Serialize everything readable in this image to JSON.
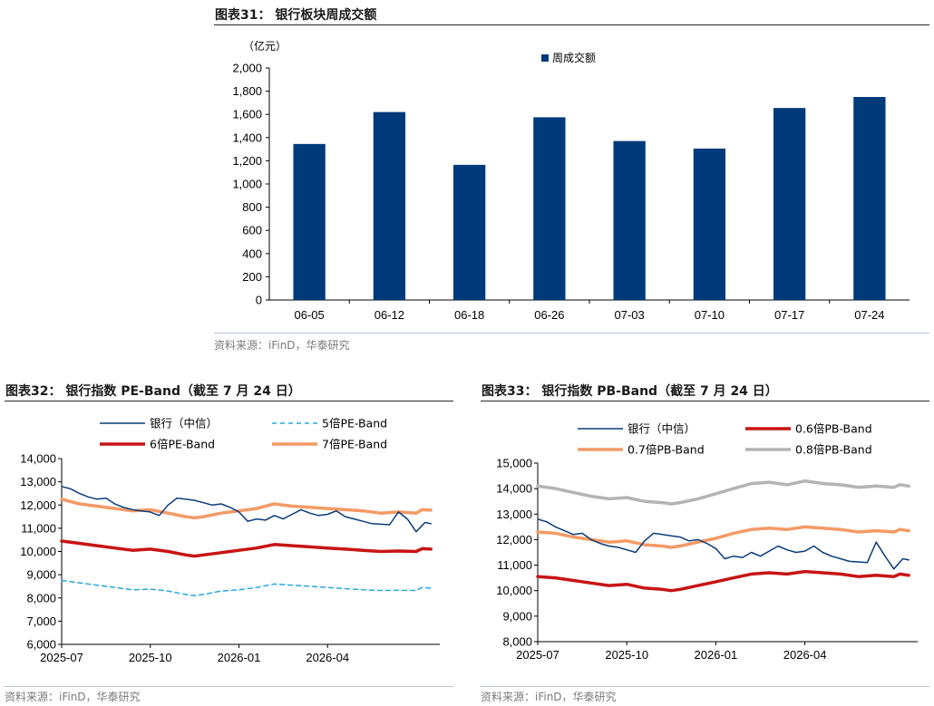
{
  "figures": {
    "fig31": {
      "title": "图表31： 银行板块周成交额",
      "source": "资料来源：iFinD，华泰研究",
      "unit": "（亿元）"
    },
    "fig32": {
      "title": "图表32： 银行指数 PE-Band（截至 7 月 24 日）",
      "source": "资料来源：iFinD，华泰研究"
    },
    "fig33": {
      "title": "图表33： 银行指数 PB-Band（截至 7 月 24 日）",
      "source": "资料来源：iFinD，华泰研究"
    }
  },
  "chart_data": [
    {
      "type": "bar",
      "title": "银行板块周成交额",
      "ylabel": "（亿元）",
      "categories": [
        "06-05",
        "06-12",
        "06-18",
        "06-26",
        "07-03",
        "07-10",
        "07-17",
        "07-24"
      ],
      "series": [
        {
          "name": "周成交额",
          "color": "#003a7a",
          "values": [
            1345,
            1620,
            1165,
            1575,
            1370,
            1305,
            1655,
            1750
          ]
        }
      ],
      "ylim": [
        0,
        2000
      ],
      "yticks": [
        0,
        200,
        400,
        600,
        800,
        1000,
        1200,
        1400,
        1600,
        1800,
        2000
      ],
      "ytick_labels": [
        "0",
        "200",
        "400",
        "600",
        "800",
        "1,000",
        "1,200",
        "1,400",
        "1,600",
        "1,800",
        "2,000"
      ],
      "grid": false,
      "legend": "top-center"
    },
    {
      "type": "line",
      "title": "银行指数 PE-Band（截至 7 月 24 日）",
      "x_ticks": [
        "2025-07",
        "2025-10",
        "2026-01",
        "2026-04"
      ],
      "x_tick_pos": [
        0,
        3,
        6,
        9
      ],
      "x_range": [
        0,
        12.8
      ],
      "ylim": [
        6000,
        14000
      ],
      "yticks": [
        6000,
        7000,
        8000,
        9000,
        10000,
        11000,
        12000,
        13000,
        14000
      ],
      "ytick_labels": [
        "6,000",
        "7,000",
        "8,000",
        "9,000",
        "10,000",
        "11,000",
        "12,000",
        "13,000",
        "14,000"
      ],
      "legend": "top",
      "series": [
        {
          "name": "银行（中信）",
          "color": "#0b3b7a",
          "width": 1.5,
          "dash": "",
          "points": [
            [
              0,
              12800
            ],
            [
              0.3,
              12700
            ],
            [
              0.6,
              12500
            ],
            [
              0.9,
              12350
            ],
            [
              1.2,
              12250
            ],
            [
              1.5,
              12300
            ],
            [
              1.8,
              12050
            ],
            [
              2.1,
              11900
            ],
            [
              2.4,
              11800
            ],
            [
              2.7,
              11750
            ],
            [
              3.0,
              11700
            ],
            [
              3.3,
              11550
            ],
            [
              3.6,
              12000
            ],
            [
              3.9,
              12300
            ],
            [
              4.2,
              12250
            ],
            [
              4.5,
              12200
            ],
            [
              4.8,
              12100
            ],
            [
              5.1,
              12000
            ],
            [
              5.4,
              12050
            ],
            [
              5.7,
              11900
            ],
            [
              6.0,
              11700
            ],
            [
              6.3,
              11300
            ],
            [
              6.6,
              11400
            ],
            [
              6.9,
              11350
            ],
            [
              7.2,
              11550
            ],
            [
              7.5,
              11400
            ],
            [
              7.8,
              11600
            ],
            [
              8.1,
              11800
            ],
            [
              8.4,
              11650
            ],
            [
              8.7,
              11550
            ],
            [
              9.0,
              11600
            ],
            [
              9.3,
              11750
            ],
            [
              9.6,
              11500
            ],
            [
              9.9,
              11400
            ],
            [
              10.2,
              11300
            ],
            [
              10.5,
              11200
            ],
            [
              11.1,
              11150
            ],
            [
              11.4,
              11700
            ],
            [
              11.7,
              11400
            ],
            [
              12.0,
              10850
            ],
            [
              12.3,
              11250
            ],
            [
              12.5,
              11200
            ]
          ]
        },
        {
          "name": "5倍PE-Band",
          "color": "#28a8e0",
          "width": 1.5,
          "dash": "5,4",
          "points": [
            [
              0,
              8750
            ],
            [
              0.6,
              8650
            ],
            [
              1.2,
              8550
            ],
            [
              1.8,
              8450
            ],
            [
              2.4,
              8350
            ],
            [
              3.0,
              8380
            ],
            [
              3.6,
              8300
            ],
            [
              4.2,
              8150
            ],
            [
              4.5,
              8100
            ],
            [
              4.8,
              8150
            ],
            [
              5.4,
              8300
            ],
            [
              6.0,
              8350
            ],
            [
              6.6,
              8450
            ],
            [
              7.2,
              8600
            ],
            [
              7.8,
              8550
            ],
            [
              8.4,
              8500
            ],
            [
              9.0,
              8450
            ],
            [
              9.6,
              8400
            ],
            [
              10.2,
              8350
            ],
            [
              10.8,
              8320
            ],
            [
              11.4,
              8330
            ],
            [
              12.0,
              8320
            ],
            [
              12.2,
              8450
            ],
            [
              12.5,
              8420
            ]
          ]
        },
        {
          "name": "6倍PE-Band",
          "color": "#c81414",
          "width": 3.5,
          "dash": "",
          "points": [
            [
              0,
              10450
            ],
            [
              0.6,
              10350
            ],
            [
              1.2,
              10250
            ],
            [
              1.8,
              10150
            ],
            [
              2.4,
              10050
            ],
            [
              3.0,
              10100
            ],
            [
              3.6,
              10000
            ],
            [
              4.2,
              9850
            ],
            [
              4.5,
              9800
            ],
            [
              4.8,
              9850
            ],
            [
              5.4,
              9950
            ],
            [
              6.0,
              10050
            ],
            [
              6.6,
              10150
            ],
            [
              7.2,
              10300
            ],
            [
              7.8,
              10250
            ],
            [
              8.4,
              10200
            ],
            [
              9.0,
              10150
            ],
            [
              9.6,
              10100
            ],
            [
              10.2,
              10050
            ],
            [
              10.8,
              10000
            ],
            [
              11.4,
              10020
            ],
            [
              12.0,
              10000
            ],
            [
              12.2,
              10120
            ],
            [
              12.5,
              10100
            ]
          ]
        },
        {
          "name": "7倍PE-Band",
          "color": "#f49a66",
          "width": 3.5,
          "dash": "",
          "points": [
            [
              0,
              12250
            ],
            [
              0.6,
              12050
            ],
            [
              1.2,
              11950
            ],
            [
              1.8,
              11850
            ],
            [
              2.4,
              11750
            ],
            [
              3.0,
              11800
            ],
            [
              3.6,
              11650
            ],
            [
              4.2,
              11500
            ],
            [
              4.5,
              11450
            ],
            [
              4.8,
              11500
            ],
            [
              5.4,
              11650
            ],
            [
              6.0,
              11750
            ],
            [
              6.6,
              11850
            ],
            [
              7.2,
              12050
            ],
            [
              7.8,
              11950
            ],
            [
              8.4,
              11900
            ],
            [
              9.0,
              11850
            ],
            [
              9.6,
              11800
            ],
            [
              10.2,
              11750
            ],
            [
              10.8,
              11650
            ],
            [
              11.4,
              11700
            ],
            [
              12.0,
              11650
            ],
            [
              12.2,
              11800
            ],
            [
              12.5,
              11780
            ]
          ]
        }
      ]
    },
    {
      "type": "line",
      "title": "银行指数 PB-Band（截至 7 月 24 日）",
      "x_ticks": [
        "2025-07",
        "2025-10",
        "2026-01",
        "2026-04"
      ],
      "x_tick_pos": [
        0,
        3,
        6,
        9
      ],
      "x_range": [
        0,
        12.8
      ],
      "ylim": [
        8000,
        15000
      ],
      "yticks": [
        8000,
        9000,
        10000,
        11000,
        12000,
        13000,
        14000,
        15000
      ],
      "ytick_labels": [
        "8,000",
        "9,000",
        "10,000",
        "11,000",
        "12,000",
        "13,000",
        "14,000",
        "15,000"
      ],
      "legend": "top",
      "series": [
        {
          "name": "银行（中信）",
          "color": "#0b3b7a",
          "width": 1.5,
          "dash": "",
          "points": [
            [
              0,
              12800
            ],
            [
              0.3,
              12700
            ],
            [
              0.6,
              12500
            ],
            [
              0.9,
              12350
            ],
            [
              1.2,
              12200
            ],
            [
              1.5,
              12250
            ],
            [
              1.8,
              12000
            ],
            [
              2.1,
              11850
            ],
            [
              2.4,
              11750
            ],
            [
              2.7,
              11700
            ],
            [
              3.0,
              11600
            ],
            [
              3.3,
              11500
            ],
            [
              3.6,
              11950
            ],
            [
              3.9,
              12250
            ],
            [
              4.2,
              12200
            ],
            [
              4.5,
              12150
            ],
            [
              4.8,
              12100
            ],
            [
              5.1,
              11950
            ],
            [
              5.4,
              12000
            ],
            [
              5.7,
              11850
            ],
            [
              6.0,
              11650
            ],
            [
              6.3,
              11250
            ],
            [
              6.6,
              11350
            ],
            [
              6.9,
              11300
            ],
            [
              7.2,
              11500
            ],
            [
              7.5,
              11350
            ],
            [
              7.8,
              11550
            ],
            [
              8.1,
              11750
            ],
            [
              8.4,
              11600
            ],
            [
              8.7,
              11500
            ],
            [
              9.0,
              11550
            ],
            [
              9.3,
              11750
            ],
            [
              9.6,
              11500
            ],
            [
              9.9,
              11350
            ],
            [
              10.2,
              11250
            ],
            [
              10.5,
              11150
            ],
            [
              11.1,
              11100
            ],
            [
              11.4,
              11900
            ],
            [
              11.7,
              11350
            ],
            [
              12.0,
              10850
            ],
            [
              12.3,
              11250
            ],
            [
              12.5,
              11200
            ]
          ]
        },
        {
          "name": "0.6倍PB-Band",
          "color": "#c81414",
          "width": 3.5,
          "dash": "",
          "points": [
            [
              0,
              10550
            ],
            [
              0.6,
              10500
            ],
            [
              1.2,
              10400
            ],
            [
              1.8,
              10300
            ],
            [
              2.4,
              10200
            ],
            [
              3.0,
              10250
            ],
            [
              3.6,
              10100
            ],
            [
              4.2,
              10050
            ],
            [
              4.5,
              10000
            ],
            [
              4.8,
              10050
            ],
            [
              5.4,
              10200
            ],
            [
              6.0,
              10350
            ],
            [
              6.6,
              10500
            ],
            [
              7.2,
              10650
            ],
            [
              7.8,
              10700
            ],
            [
              8.4,
              10650
            ],
            [
              9.0,
              10750
            ],
            [
              9.6,
              10700
            ],
            [
              10.2,
              10650
            ],
            [
              10.8,
              10550
            ],
            [
              11.4,
              10600
            ],
            [
              12.0,
              10550
            ],
            [
              12.2,
              10650
            ],
            [
              12.5,
              10600
            ]
          ]
        },
        {
          "name": "0.7倍PB-Band",
          "color": "#f49a66",
          "width": 3.5,
          "dash": "",
          "points": [
            [
              0,
              12300
            ],
            [
              0.6,
              12250
            ],
            [
              1.2,
              12100
            ],
            [
              1.8,
              12000
            ],
            [
              2.4,
              11900
            ],
            [
              3.0,
              11950
            ],
            [
              3.6,
              11800
            ],
            [
              4.2,
              11750
            ],
            [
              4.5,
              11700
            ],
            [
              4.8,
              11750
            ],
            [
              5.4,
              11900
            ],
            [
              6.0,
              12050
            ],
            [
              6.6,
              12250
            ],
            [
              7.2,
              12400
            ],
            [
              7.8,
              12450
            ],
            [
              8.4,
              12400
            ],
            [
              9.0,
              12500
            ],
            [
              9.6,
              12450
            ],
            [
              10.2,
              12400
            ],
            [
              10.8,
              12300
            ],
            [
              11.4,
              12350
            ],
            [
              12.0,
              12300
            ],
            [
              12.2,
              12400
            ],
            [
              12.5,
              12350
            ]
          ]
        },
        {
          "name": "0.8倍PB-Band",
          "color": "#b4b4b4",
          "width": 3.5,
          "dash": "",
          "points": [
            [
              0,
              14100
            ],
            [
              0.6,
              14000
            ],
            [
              1.2,
              13850
            ],
            [
              1.8,
              13700
            ],
            [
              2.4,
              13600
            ],
            [
              3.0,
              13650
            ],
            [
              3.6,
              13500
            ],
            [
              4.2,
              13450
            ],
            [
              4.5,
              13400
            ],
            [
              4.8,
              13450
            ],
            [
              5.4,
              13600
            ],
            [
              6.0,
              13800
            ],
            [
              6.6,
              14000
            ],
            [
              7.2,
              14200
            ],
            [
              7.8,
              14250
            ],
            [
              8.4,
              14150
            ],
            [
              9.0,
              14300
            ],
            [
              9.6,
              14200
            ],
            [
              10.2,
              14150
            ],
            [
              10.8,
              14050
            ],
            [
              11.4,
              14100
            ],
            [
              12.0,
              14050
            ],
            [
              12.2,
              14150
            ],
            [
              12.5,
              14100
            ]
          ]
        }
      ]
    }
  ]
}
